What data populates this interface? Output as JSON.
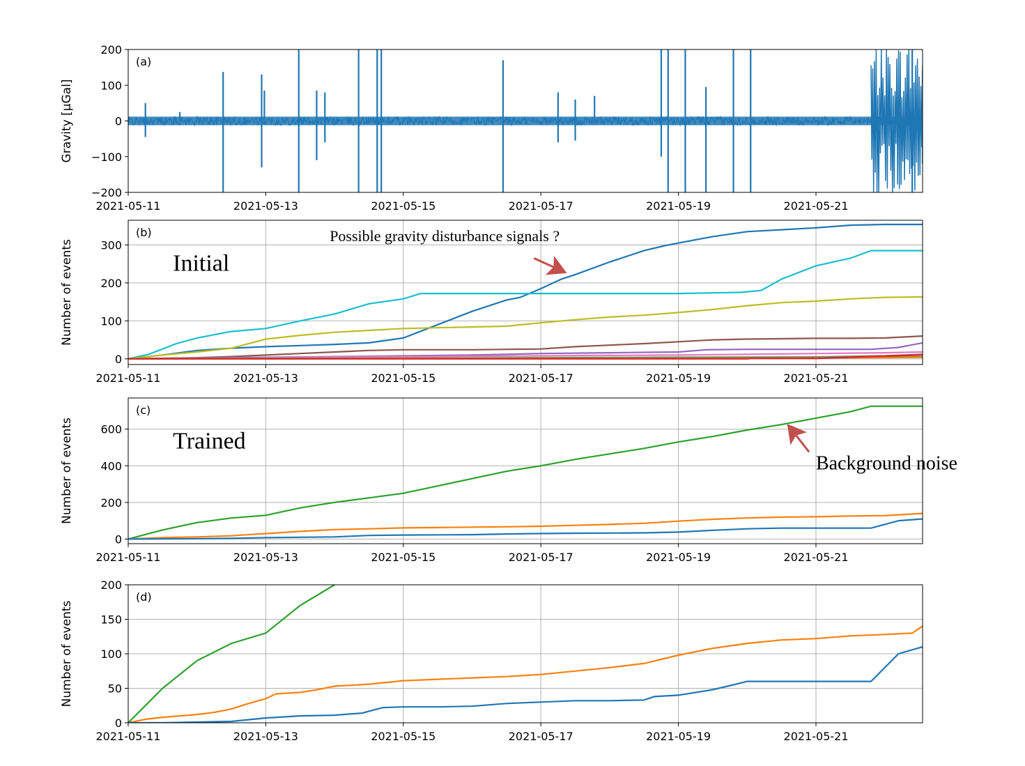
{
  "chart_data": [
    {
      "panel": "(a)",
      "type": "line",
      "ylabel": "Gravity [μGal]",
      "ylim": [
        -200,
        200
      ],
      "yticks": [
        -200,
        -100,
        0,
        100,
        200
      ],
      "ytick_labels": [
        "−200",
        "−100",
        "0",
        "100",
        "200"
      ],
      "xlim": [
        "2021-05-11",
        "2021-05-22.55"
      ],
      "xticks": [
        "2021-05-11",
        "2021-05-13",
        "2021-05-15",
        "2021-05-17",
        "2021-05-19",
        "2021-05-21"
      ],
      "grid": false,
      "noise_level": 12,
      "series": [
        {
          "color": "#1f77b4",
          "spikes": [
            {
              "x": "2021-05-11.25",
              "y": 50
            },
            {
              "x": "2021-05-11.25",
              "y": -45
            },
            {
              "x": "2021-05-11.75",
              "y": 25
            },
            {
              "x": "2021-05-12.38",
              "y": 137
            },
            {
              "x": "2021-05-12.38",
              "y": -200
            },
            {
              "x": "2021-05-12.94",
              "y": 130
            },
            {
              "x": "2021-05-12.94",
              "y": -130
            },
            {
              "x": "2021-05-12.98",
              "y": 85
            },
            {
              "x": "2021-05-13.48",
              "y": 200
            },
            {
              "x": "2021-05-13.48",
              "y": -200
            },
            {
              "x": "2021-05-13.74",
              "y": 85
            },
            {
              "x": "2021-05-13.74",
              "y": -110
            },
            {
              "x": "2021-05-13.86",
              "y": 80
            },
            {
              "x": "2021-05-13.86",
              "y": -60
            },
            {
              "x": "2021-05-14.35",
              "y": 200
            },
            {
              "x": "2021-05-14.35",
              "y": -200
            },
            {
              "x": "2021-05-14.62",
              "y": 200
            },
            {
              "x": "2021-05-14.62",
              "y": -200
            },
            {
              "x": "2021-05-14.68",
              "y": 200
            },
            {
              "x": "2021-05-14.68",
              "y": -200
            },
            {
              "x": "2021-05-16.45",
              "y": 170
            },
            {
              "x": "2021-05-16.45",
              "y": -200
            },
            {
              "x": "2021-05-17.25",
              "y": 80
            },
            {
              "x": "2021-05-17.25",
              "y": -60
            },
            {
              "x": "2021-05-17.5",
              "y": 60
            },
            {
              "x": "2021-05-17.5",
              "y": -55
            },
            {
              "x": "2021-05-17.78",
              "y": 70
            },
            {
              "x": "2021-05-18.75",
              "y": 200
            },
            {
              "x": "2021-05-18.75",
              "y": -100
            },
            {
              "x": "2021-05-18.85",
              "y": 200
            },
            {
              "x": "2021-05-18.85",
              "y": -200
            },
            {
              "x": "2021-05-19.1",
              "y": 200
            },
            {
              "x": "2021-05-19.1",
              "y": -200
            },
            {
              "x": "2021-05-19.4",
              "y": 95
            },
            {
              "x": "2021-05-19.4",
              "y": -200
            },
            {
              "x": "2021-05-19.8",
              "y": 200
            },
            {
              "x": "2021-05-19.8",
              "y": -200
            },
            {
              "x": "2021-05-20.05",
              "y": 200
            },
            {
              "x": "2021-05-20.05",
              "y": -200
            },
            {
              "x": "2021-05-22.4",
              "y": 200
            },
            {
              "x": "2021-05-22.4",
              "y": -200
            },
            {
              "x": "2021-05-22.55",
              "y": 140
            },
            {
              "x": "2021-05-22.55",
              "y": -120
            }
          ],
          "burst": {
            "x_start": "2021-05-21.8",
            "x_end": "2021-05-22.55",
            "amplitude": 200
          }
        }
      ]
    },
    {
      "panel": "(b)",
      "type": "line",
      "ylabel": "Number of events",
      "ylim": [
        -15,
        365
      ],
      "yticks": [
        0,
        100,
        200,
        300
      ],
      "xlim": [
        "2021-05-11",
        "2021-05-22.55"
      ],
      "xticks": [
        "2021-05-11",
        "2021-05-13",
        "2021-05-15",
        "2021-05-17",
        "2021-05-19",
        "2021-05-21"
      ],
      "grid": true,
      "annotations": [
        {
          "text": "Initial",
          "x": "2021-05-11.65",
          "y": 232
        },
        {
          "text": "Possible gravity  disturbance signals  ?",
          "x": "2021-05-13.93",
          "y": 310,
          "arrow_to": {
            "x": "2021-05-17.35",
            "y": 228
          },
          "arrow_from": {
            "x": "2021-05-16.9",
            "y": 265
          }
        }
      ],
      "series": [
        {
          "color": "#1f77b4",
          "x": [
            11,
            11.5,
            12,
            12.5,
            13,
            13.5,
            14,
            14.5,
            15,
            15.5,
            16,
            16.5,
            16.7,
            17,
            17.3,
            17.5,
            18,
            18.5,
            18.8,
            19,
            19.5,
            20,
            20.5,
            21,
            21.5,
            22,
            22.55
          ],
          "y": [
            0,
            10,
            22,
            28,
            32,
            35,
            38,
            42,
            55,
            90,
            125,
            155,
            162,
            185,
            210,
            222,
            255,
            285,
            298,
            305,
            322,
            335,
            340,
            345,
            352,
            354,
            354
          ]
        },
        {
          "color": "#17becf",
          "x": [
            11,
            11.3,
            11.7,
            12,
            12.5,
            13,
            13.5,
            14,
            14.5,
            15,
            15.25,
            16,
            17,
            18,
            19,
            19.9,
            20.2,
            20.5,
            21,
            21.5,
            21.8,
            22,
            22.55
          ],
          "y": [
            0,
            12,
            40,
            55,
            72,
            80,
            100,
            118,
            145,
            158,
            172,
            172,
            172,
            172,
            172,
            175,
            180,
            210,
            245,
            265,
            285,
            285,
            285
          ]
        },
        {
          "color": "#bcbd22",
          "x": [
            11,
            11.5,
            12,
            12.5,
            13,
            13.5,
            14,
            14.5,
            15,
            15.5,
            16,
            16.5,
            17,
            17.5,
            18,
            18.5,
            19,
            19.5,
            20,
            20.5,
            21,
            21.5,
            22,
            22.55
          ],
          "y": [
            0,
            10,
            18,
            28,
            52,
            62,
            70,
            75,
            80,
            82,
            84,
            86,
            95,
            103,
            110,
            115,
            122,
            130,
            140,
            148,
            152,
            158,
            162,
            163
          ]
        },
        {
          "color": "#8c564b",
          "x": [
            11,
            12,
            12.5,
            13,
            13.5,
            14,
            14.5,
            15,
            16,
            16.5,
            17,
            17.5,
            18,
            18.5,
            19,
            19.5,
            20,
            20.5,
            21,
            21.5,
            22,
            22.55
          ],
          "y": [
            0,
            3,
            6,
            10,
            14,
            18,
            22,
            24,
            24,
            25,
            26,
            32,
            36,
            40,
            45,
            50,
            52,
            53,
            54,
            54,
            55,
            60
          ]
        },
        {
          "color": "#9467bd",
          "x": [
            11,
            12,
            13,
            14,
            15,
            16,
            16.5,
            17,
            18,
            19,
            19.4,
            20,
            21,
            21.8,
            22.2,
            22.55
          ],
          "y": [
            0,
            2,
            4,
            6,
            8,
            10,
            12,
            14,
            16,
            18,
            24,
            25,
            25,
            25,
            30,
            42
          ]
        },
        {
          "color": "#e377c2",
          "x": [
            11,
            12,
            13,
            14,
            15,
            16,
            17,
            18,
            19,
            20,
            21,
            22,
            22.55
          ],
          "y": [
            0,
            1,
            3,
            5,
            6,
            7,
            8,
            9,
            10,
            12,
            14,
            16,
            18
          ]
        },
        {
          "color": "#7f7f7f",
          "x": [
            11,
            13,
            15,
            17,
            19,
            21,
            22,
            22.55
          ],
          "y": [
            0,
            1,
            2,
            3,
            4,
            5,
            8,
            12
          ]
        },
        {
          "color": "#2ca02c",
          "x": [
            11,
            13,
            15,
            17,
            19,
            21,
            22,
            22.55
          ],
          "y": [
            0,
            1,
            1,
            2,
            2,
            3,
            4,
            5
          ]
        },
        {
          "color": "#ff7f0e",
          "x": [
            11,
            13,
            15,
            17,
            19,
            21,
            22,
            22.55
          ],
          "y": [
            0,
            0,
            1,
            1,
            1,
            2,
            3,
            4
          ]
        },
        {
          "color": "#d62728",
          "x": [
            11,
            20,
            20.05,
            21,
            22.1,
            22.55
          ],
          "y": [
            0,
            0,
            1,
            1,
            8,
            10
          ]
        }
      ]
    },
    {
      "panel": "(c)",
      "type": "line",
      "ylabel": "Number of events",
      "ylim": [
        -25,
        770
      ],
      "yticks": [
        0,
        200,
        400,
        600
      ],
      "xlim": [
        "2021-05-11",
        "2021-05-22.55"
      ],
      "xticks": [
        "2021-05-11",
        "2021-05-13",
        "2021-05-15",
        "2021-05-17",
        "2021-05-19",
        "2021-05-21"
      ],
      "grid": true,
      "annotations": [
        {
          "text": "Trained",
          "x": "2021-05-11.65",
          "y": 495
        },
        {
          "text": "Background noise",
          "x": "2021-05-21.0",
          "y": 380,
          "arrow_to": {
            "x": "2021-05-20.6",
            "y": 620
          },
          "arrow_from": {
            "x": "2021-05-20.9",
            "y": 475
          }
        }
      ],
      "series": [
        {
          "color": "#2ca02c",
          "x": [
            11,
            11.5,
            12,
            12.5,
            13,
            13.5,
            14,
            14.5,
            15,
            15.5,
            16,
            16.5,
            17,
            17.5,
            18,
            18.5,
            19,
            19.5,
            20,
            20.5,
            21,
            21.5,
            21.8,
            22,
            22.55
          ],
          "y": [
            0,
            50,
            90,
            115,
            130,
            170,
            200,
            225,
            250,
            290,
            330,
            370,
            400,
            435,
            465,
            495,
            530,
            560,
            595,
            625,
            660,
            695,
            725,
            725,
            725
          ]
        },
        {
          "color": "#ff7f0e",
          "x": [
            11,
            11.5,
            12,
            12.5,
            13,
            13.5,
            14,
            14.5,
            15,
            15.5,
            16,
            16.5,
            17,
            17.5,
            18,
            18.5,
            19,
            19.5,
            20,
            20.5,
            21,
            21.5,
            22,
            22.55
          ],
          "y": [
            0,
            8,
            12,
            18,
            30,
            42,
            52,
            56,
            61,
            63,
            65,
            67,
            70,
            75,
            80,
            86,
            98,
            108,
            115,
            120,
            122,
            126,
            128,
            140
          ]
        },
        {
          "color": "#1f77b4",
          "x": [
            11,
            12,
            12.5,
            13,
            13.5,
            14,
            14.5,
            15,
            16,
            16.5,
            17,
            17.5,
            18,
            18.5,
            19,
            19.5,
            20,
            20.5,
            21,
            21.5,
            21.8,
            22.2,
            22.55
          ],
          "y": [
            0,
            2,
            4,
            8,
            10,
            12,
            20,
            22,
            24,
            28,
            30,
            32,
            33,
            34,
            38,
            48,
            56,
            60,
            60,
            60,
            60,
            100,
            110
          ]
        }
      ]
    },
    {
      "panel": "(d)",
      "type": "line",
      "ylabel": "Number of events",
      "ylim": [
        0,
        200
      ],
      "yticks": [
        0,
        50,
        100,
        150,
        200
      ],
      "xlim": [
        "2021-05-11",
        "2021-05-22.55"
      ],
      "xticks": [
        "2021-05-11",
        "2021-05-13",
        "2021-05-15",
        "2021-05-17",
        "2021-05-19",
        "2021-05-21"
      ],
      "grid": true,
      "series": [
        {
          "color": "#2ca02c",
          "x": [
            11,
            11.5,
            12,
            12.5,
            13,
            13.5,
            14,
            14.5
          ],
          "y": [
            0,
            50,
            90,
            115,
            130,
            170,
            200,
            225
          ]
        },
        {
          "color": "#ff7f0e",
          "x": [
            11,
            11.25,
            11.5,
            11.75,
            12,
            12.25,
            12.5,
            12.75,
            13,
            13.15,
            13.5,
            13.75,
            14,
            14.5,
            15,
            15.5,
            16,
            16.5,
            17,
            17.5,
            18,
            18.5,
            19,
            19.5,
            20,
            20.5,
            21,
            21.5,
            22,
            22.4,
            22.55
          ],
          "y": [
            0,
            5,
            8,
            10,
            12,
            15,
            20,
            28,
            35,
            42,
            44,
            48,
            53,
            56,
            61,
            63,
            65,
            67,
            70,
            75,
            80,
            86,
            98,
            108,
            115,
            120,
            122,
            126,
            128,
            130,
            140
          ]
        },
        {
          "color": "#1f77b4",
          "x": [
            11,
            11.5,
            12,
            12.5,
            13,
            13.5,
            14,
            14.4,
            14.7,
            15,
            15.5,
            16,
            16.5,
            17,
            17.5,
            18,
            18.5,
            18.65,
            19,
            19.5,
            19.8,
            20,
            20.5,
            21,
            21.5,
            21.8,
            22.2,
            22.55
          ],
          "y": [
            0,
            0,
            1,
            2,
            7,
            10,
            11,
            14,
            22,
            23,
            23,
            24,
            28,
            30,
            32,
            32,
            33,
            38,
            40,
            48,
            55,
            60,
            60,
            60,
            60,
            60,
            100,
            110
          ]
        }
      ]
    }
  ]
}
